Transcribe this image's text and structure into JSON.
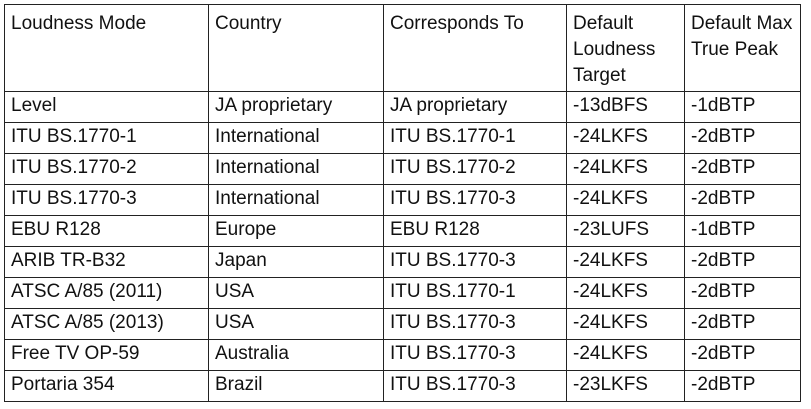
{
  "table": {
    "headers": [
      "Loudness Mode",
      "Country",
      "Corresponds To",
      "Default Loudness Target",
      "Default Max True Peak"
    ],
    "rows": [
      [
        "Level",
        "JA proprietary",
        "JA proprietary",
        "-13dBFS",
        "-1dBTP"
      ],
      [
        "ITU BS.1770-1",
        "International",
        "ITU BS.1770-1",
        "-24LKFS",
        "-2dBTP"
      ],
      [
        "ITU BS.1770-2",
        "International",
        "ITU BS.1770-2",
        "-24LKFS",
        "-2dBTP"
      ],
      [
        "ITU BS.1770-3",
        "International",
        "ITU BS.1770-3",
        "-24LKFS",
        "-2dBTP"
      ],
      [
        "EBU R128",
        "Europe",
        "EBU R128",
        "-23LUFS",
        "-1dBTP"
      ],
      [
        "ARIB TR-B32",
        "Japan",
        "ITU BS.1770-3",
        "-24LKFS",
        "-2dBTP"
      ],
      [
        "ATSC A/85 (2011)",
        "USA",
        "ITU BS.1770-1",
        "-24LKFS",
        "-2dBTP"
      ],
      [
        "ATSC A/85 (2013)",
        "USA",
        "ITU BS.1770-3",
        "-24LKFS",
        "-2dBTP"
      ],
      [
        "Free TV OP-59",
        "Australia",
        "ITU BS.1770-3",
        "-24LKFS",
        "-2dBTP"
      ],
      [
        "Portaria 354",
        "Brazil",
        "ITU BS.1770-3",
        "-23LKFS",
        "-2dBTP"
      ]
    ]
  }
}
